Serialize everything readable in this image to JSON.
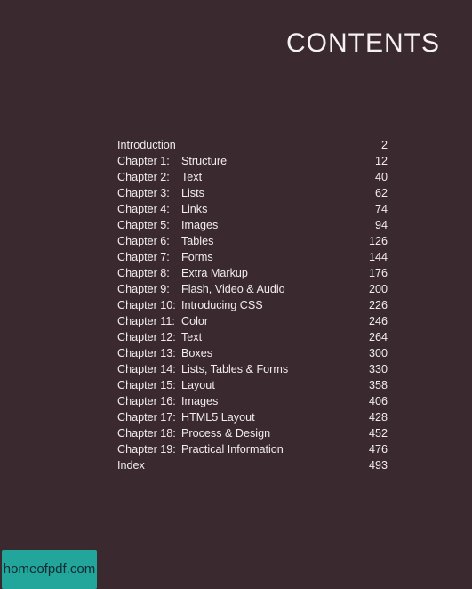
{
  "title": "CONTENTS",
  "entries": [
    {
      "chapter": "Introduction",
      "name": "",
      "page": "2"
    },
    {
      "chapter": "Chapter 1:",
      "name": "Structure",
      "page": "12"
    },
    {
      "chapter": "Chapter 2:",
      "name": "Text",
      "page": "40"
    },
    {
      "chapter": "Chapter 3:",
      "name": "Lists",
      "page": "62"
    },
    {
      "chapter": "Chapter 4:",
      "name": "Links",
      "page": "74"
    },
    {
      "chapter": "Chapter 5:",
      "name": "Images",
      "page": "94"
    },
    {
      "chapter": "Chapter 6:",
      "name": "Tables",
      "page": "126"
    },
    {
      "chapter": "Chapter 7:",
      "name": "Forms",
      "page": "144"
    },
    {
      "chapter": "Chapter 8:",
      "name": "Extra Markup",
      "page": "176"
    },
    {
      "chapter": "Chapter 9:",
      "name": "Flash, Video & Audio",
      "page": "200"
    },
    {
      "chapter": "Chapter 10:",
      "name": "Introducing CSS",
      "page": "226"
    },
    {
      "chapter": "Chapter 11:",
      "name": "Color",
      "page": "246"
    },
    {
      "chapter": "Chapter 12:",
      "name": "Text",
      "page": "264"
    },
    {
      "chapter": "Chapter 13:",
      "name": "Boxes",
      "page": "300"
    },
    {
      "chapter": "Chapter 14:",
      "name": "Lists, Tables & Forms",
      "page": "330"
    },
    {
      "chapter": "Chapter 15:",
      "name": "Layout",
      "page": "358"
    },
    {
      "chapter": "Chapter 16:",
      "name": "Images",
      "page": "406"
    },
    {
      "chapter": "Chapter 17:",
      "name": "HTML5 Layout",
      "page": "428"
    },
    {
      "chapter": "Chapter 18:",
      "name": "Process & Design",
      "page": "452"
    },
    {
      "chapter": "Chapter 19:",
      "name": "Practical Information",
      "page": "476"
    },
    {
      "chapter": "Index",
      "name": "",
      "page": "493"
    }
  ],
  "watermark": "homeofpdf.com",
  "colors": {
    "background": "#3a2a30",
    "text": "#f1ecee",
    "watermark_bg": "#22a59a"
  }
}
